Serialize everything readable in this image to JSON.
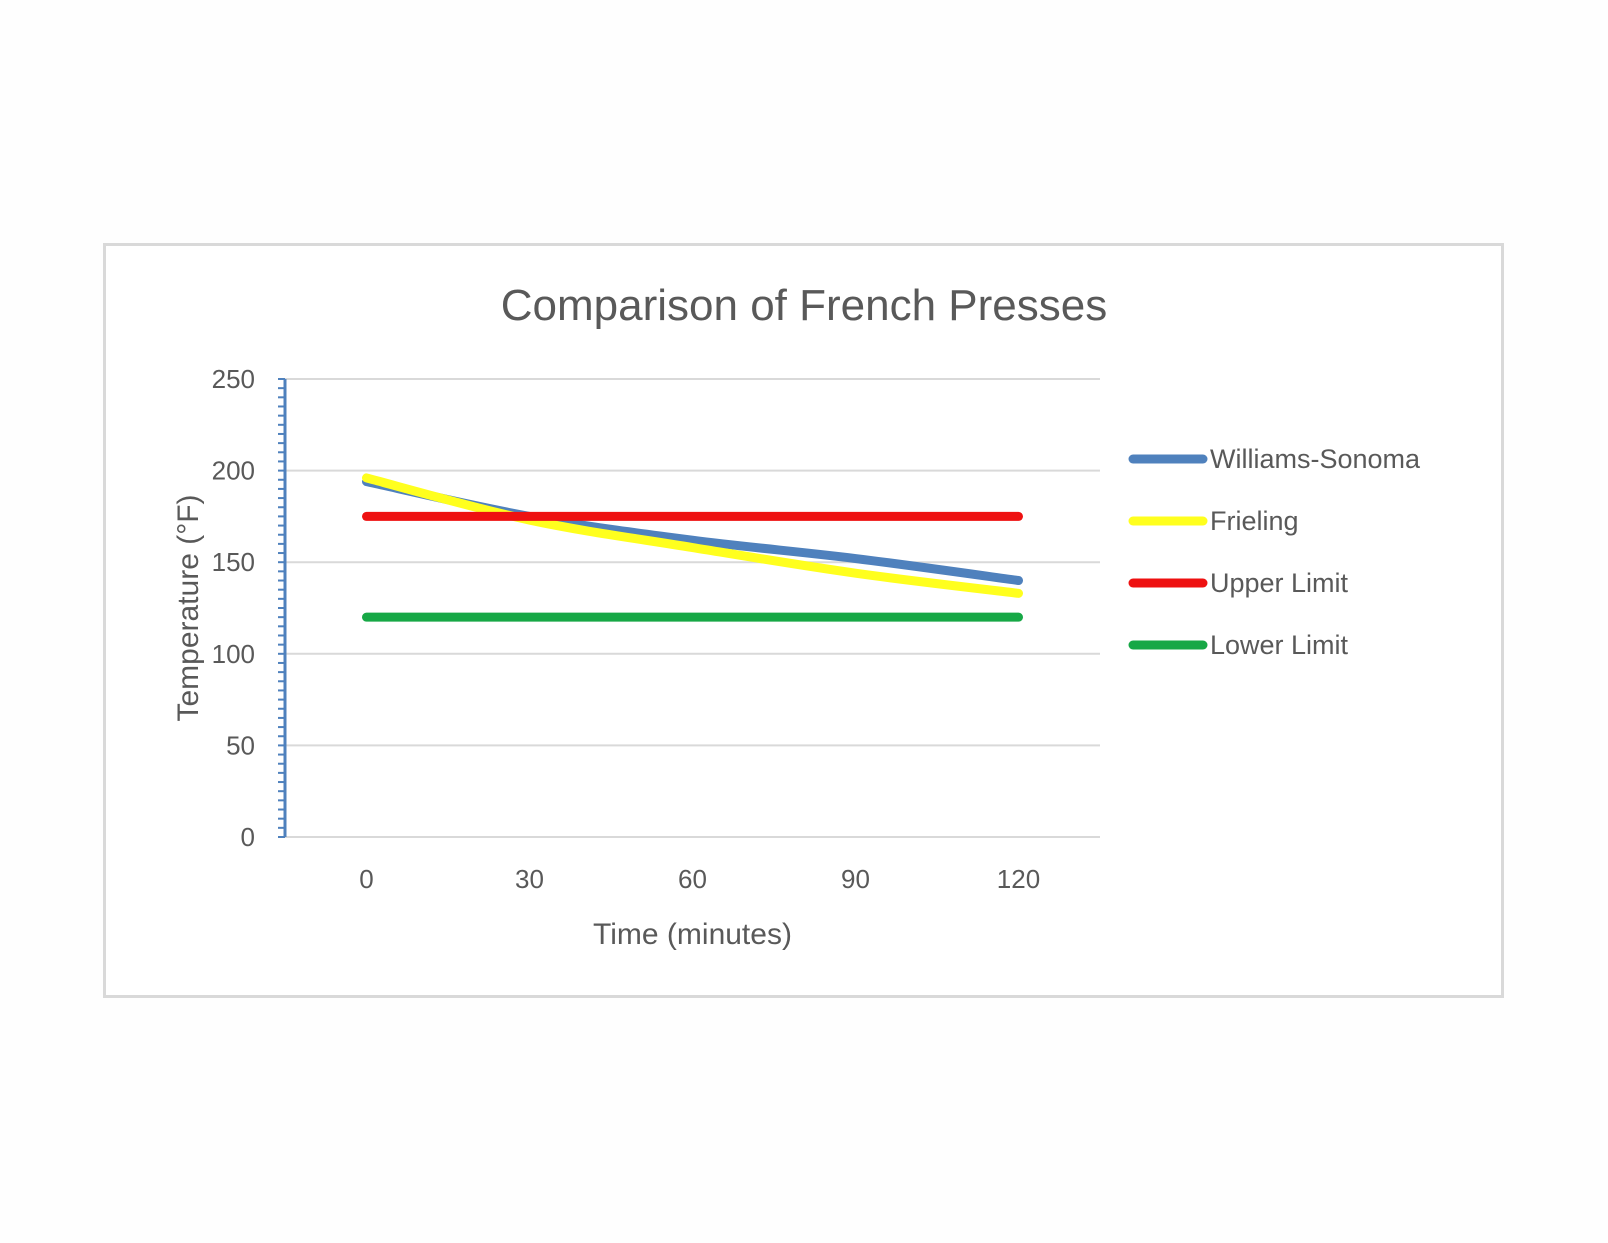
{
  "chart_data": {
    "type": "line",
    "title": "Comparison of French Presses",
    "xlabel": "Time (minutes)",
    "ylabel": "Temperature (°F)",
    "x": [
      0,
      30,
      60,
      90,
      120
    ],
    "xlim": [
      -15,
      135
    ],
    "ylim": [
      0,
      250
    ],
    "x_ticks": [
      "0",
      "30",
      "60",
      "90",
      "120"
    ],
    "y_ticks": [
      "0",
      "50",
      "100",
      "150",
      "200",
      "250"
    ],
    "grid": true,
    "legend_position": "right",
    "series": [
      {
        "name": "Williams-Sonoma",
        "color": "#4f81bd",
        "values": [
          194,
          175,
          162,
          152,
          140
        ]
      },
      {
        "name": "Frieling",
        "color": "#ffff1e",
        "values": [
          196,
          173,
          158,
          144,
          133
        ]
      },
      {
        "name": "Upper Limit",
        "color": "#ee1111",
        "values": [
          175,
          175,
          175,
          175,
          175
        ]
      },
      {
        "name": "Lower Limit",
        "color": "#17a846",
        "values": [
          120,
          120,
          120,
          120,
          120
        ]
      }
    ]
  }
}
